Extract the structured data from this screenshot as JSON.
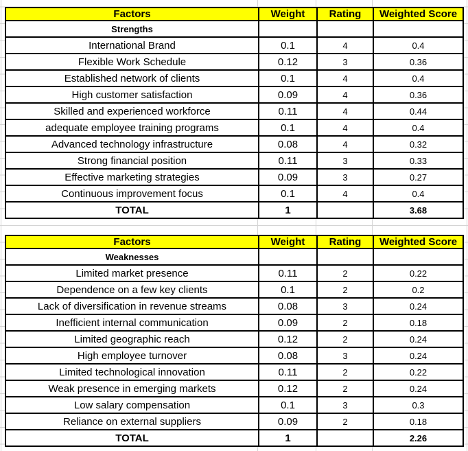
{
  "colors": {
    "header_bg": "#ffff00",
    "table_border": "#000000",
    "gridline": "#d4d4d4",
    "text": "#000000"
  },
  "tables": [
    {
      "headers": [
        "Factors",
        "Weight",
        "Rating",
        "Weighted Score"
      ],
      "section": "Strengths",
      "rows": [
        {
          "factor": "International Brand",
          "weight": "0.1",
          "rating": "4",
          "score": "0.4"
        },
        {
          "factor": "Flexible Work Schedule",
          "weight": "0.12",
          "rating": "3",
          "score": "0.36"
        },
        {
          "factor": "Established network of clients",
          "weight": "0.1",
          "rating": "4",
          "score": "0.4"
        },
        {
          "factor": "High customer satisfaction",
          "weight": "0.09",
          "rating": "4",
          "score": "0.36"
        },
        {
          "factor": "Skilled and experienced workforce",
          "weight": "0.11",
          "rating": "4",
          "score": "0.44"
        },
        {
          "factor": "adequate employee training programs",
          "weight": "0.1",
          "rating": "4",
          "score": "0.4"
        },
        {
          "factor": "Advanced technology infrastructure",
          "weight": "0.08",
          "rating": "4",
          "score": "0.32"
        },
        {
          "factor": "Strong financial position",
          "weight": "0.11",
          "rating": "3",
          "score": "0.33"
        },
        {
          "factor": "Effective marketing strategies",
          "weight": "0.09",
          "rating": "3",
          "score": "0.27"
        },
        {
          "factor": "Continuous improvement focus",
          "weight": "0.1",
          "rating": "4",
          "score": "0.4"
        }
      ],
      "total": {
        "label": "TOTAL",
        "weight": "1",
        "rating": "",
        "score": "3.68"
      }
    },
    {
      "headers": [
        "Factors",
        "Weight",
        "Rating",
        "Weighted Score"
      ],
      "section": "Weaknesses",
      "rows": [
        {
          "factor": "Limited market presence",
          "weight": "0.11",
          "rating": "2",
          "score": "0.22"
        },
        {
          "factor": "Dependence on a few key clients",
          "weight": "0.1",
          "rating": "2",
          "score": "0.2"
        },
        {
          "factor": "Lack of diversification in revenue streams",
          "weight": "0.08",
          "rating": "3",
          "score": "0.24"
        },
        {
          "factor": "Inefficient internal communication",
          "weight": "0.09",
          "rating": "2",
          "score": "0.18"
        },
        {
          "factor": "Limited geographic reach",
          "weight": "0.12",
          "rating": "2",
          "score": "0.24"
        },
        {
          "factor": "High employee turnover",
          "weight": "0.08",
          "rating": "3",
          "score": "0.24"
        },
        {
          "factor": "Limited technological innovation",
          "weight": "0.11",
          "rating": "2",
          "score": "0.22"
        },
        {
          "factor": "Weak presence in emerging markets",
          "weight": "0.12",
          "rating": "2",
          "score": "0.24"
        },
        {
          "factor": "Low salary compensation",
          "weight": "0.1",
          "rating": "3",
          "score": "0.3"
        },
        {
          "factor": "Reliance on external suppliers",
          "weight": "0.09",
          "rating": "2",
          "score": "0.18"
        }
      ],
      "total": {
        "label": "TOTAL",
        "weight": "1",
        "rating": "",
        "score": "2.26"
      }
    }
  ]
}
